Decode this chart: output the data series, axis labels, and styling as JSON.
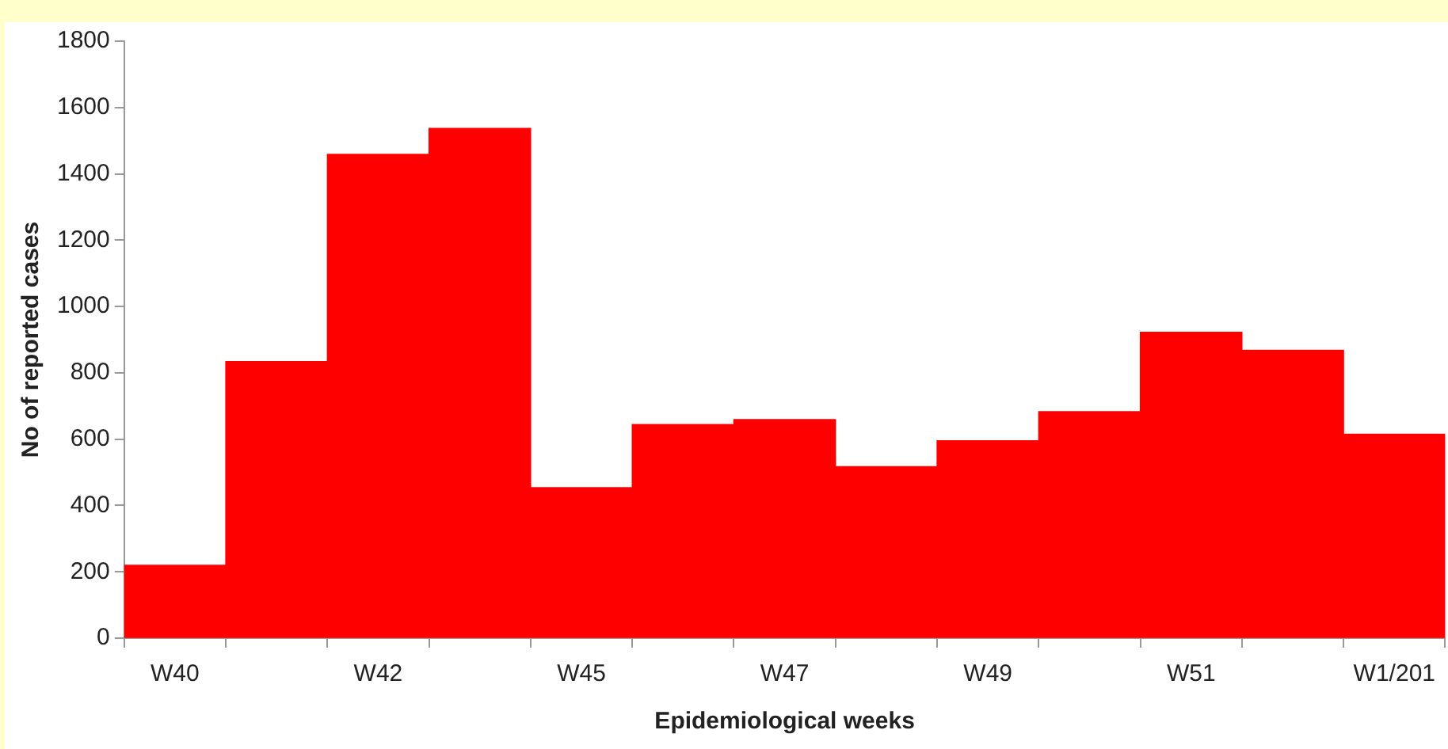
{
  "chart_data": {
    "type": "bar",
    "xlabel": "Epidemiological weeks",
    "ylabel": "No of reported cases",
    "categories": [
      "W40",
      null,
      "W42",
      null,
      "W45",
      null,
      "W47",
      null,
      "W49",
      null,
      "W51",
      null,
      "W1/201"
    ],
    "values": [
      220,
      834,
      1459,
      1537,
      454,
      644,
      659,
      517,
      595,
      683,
      922,
      868,
      615
    ],
    "color": "#ff0000",
    "ylim": [
      0,
      1800
    ],
    "yticks": [
      0,
      200,
      400,
      600,
      800,
      1000,
      1200,
      1400,
      1600,
      1800
    ],
    "grid": false,
    "legend": false
  }
}
